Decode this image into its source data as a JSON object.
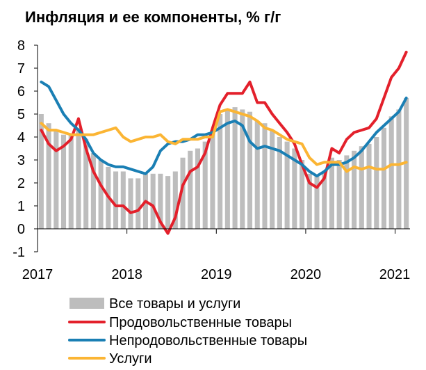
{
  "chart_data": {
    "type": "bar+line",
    "title": "Инфляция и ее компоненты, % г/г",
    "xlabel": "",
    "ylabel": "",
    "ylim": [
      -1,
      8
    ],
    "yticks": [
      8,
      7,
      6,
      5,
      4,
      3,
      2,
      1,
      0,
      -1
    ],
    "xticks": [
      "2017",
      "2018",
      "2019",
      "2020",
      "2021"
    ],
    "grid": false,
    "legend_position": "bottom",
    "series": [
      {
        "name": "Все товары и услуги",
        "type": "bar",
        "color": "#bdbdbd",
        "values": [
          5.0,
          4.6,
          4.3,
          4.1,
          4.1,
          4.4,
          3.9,
          3.3,
          3.0,
          2.7,
          2.5,
          2.5,
          2.2,
          2.2,
          2.4,
          2.4,
          2.4,
          2.3,
          2.5,
          3.1,
          3.4,
          3.5,
          3.8,
          4.3,
          5.0,
          5.2,
          5.3,
          5.2,
          5.1,
          4.7,
          4.6,
          4.3,
          4.0,
          3.8,
          3.5,
          3.0,
          2.4,
          2.3,
          2.5,
          3.1,
          3.0,
          3.2,
          3.4,
          3.6,
          3.7,
          4.0,
          4.4,
          4.9,
          5.2,
          5.7
        ]
      },
      {
        "name": "Продовольственные товары",
        "type": "line",
        "color": "#e3202b",
        "values": [
          4.3,
          3.7,
          3.4,
          3.6,
          3.9,
          4.8,
          3.5,
          2.5,
          1.9,
          1.4,
          1.0,
          1.0,
          0.7,
          0.8,
          1.2,
          1.0,
          0.3,
          -0.2,
          0.5,
          1.9,
          2.5,
          2.7,
          3.3,
          4.4,
          5.4,
          5.9,
          5.9,
          5.9,
          6.4,
          5.5,
          5.5,
          5.0,
          4.6,
          4.2,
          3.7,
          2.8,
          2.0,
          1.8,
          2.2,
          3.5,
          3.3,
          3.9,
          4.2,
          4.3,
          4.4,
          4.8,
          5.7,
          6.6,
          7.0,
          7.7
        ]
      },
      {
        "name": "Непродовольственные товары",
        "type": "line",
        "color": "#1a7fb4",
        "values": [
          6.4,
          6.2,
          5.6,
          5.0,
          4.6,
          4.3,
          3.9,
          3.3,
          3.0,
          2.8,
          2.7,
          2.7,
          2.6,
          2.5,
          2.4,
          2.7,
          3.4,
          3.7,
          3.8,
          3.8,
          3.9,
          4.1,
          4.1,
          4.2,
          4.4,
          4.6,
          4.7,
          4.5,
          3.8,
          3.5,
          3.6,
          3.5,
          3.4,
          3.2,
          3.0,
          2.8,
          2.5,
          2.3,
          2.5,
          2.8,
          2.8,
          2.9,
          3.1,
          3.4,
          3.8,
          4.2,
          4.5,
          4.8,
          5.1,
          5.7
        ]
      },
      {
        "name": "Услуги",
        "type": "line",
        "color": "#fbb534",
        "values": [
          4.6,
          4.3,
          4.3,
          4.2,
          4.1,
          4.1,
          4.1,
          4.1,
          4.2,
          4.3,
          4.4,
          4.0,
          3.8,
          3.9,
          4.0,
          4.0,
          4.1,
          3.8,
          3.7,
          3.9,
          3.9,
          3.9,
          4.0,
          4.0,
          5.1,
          5.2,
          5.1,
          5.0,
          4.9,
          4.7,
          4.4,
          4.3,
          4.1,
          3.9,
          3.8,
          3.7,
          3.1,
          2.8,
          2.9,
          2.9,
          2.9,
          2.5,
          2.7,
          2.6,
          2.7,
          2.6,
          2.6,
          2.8,
          2.8,
          2.9
        ]
      }
    ]
  }
}
